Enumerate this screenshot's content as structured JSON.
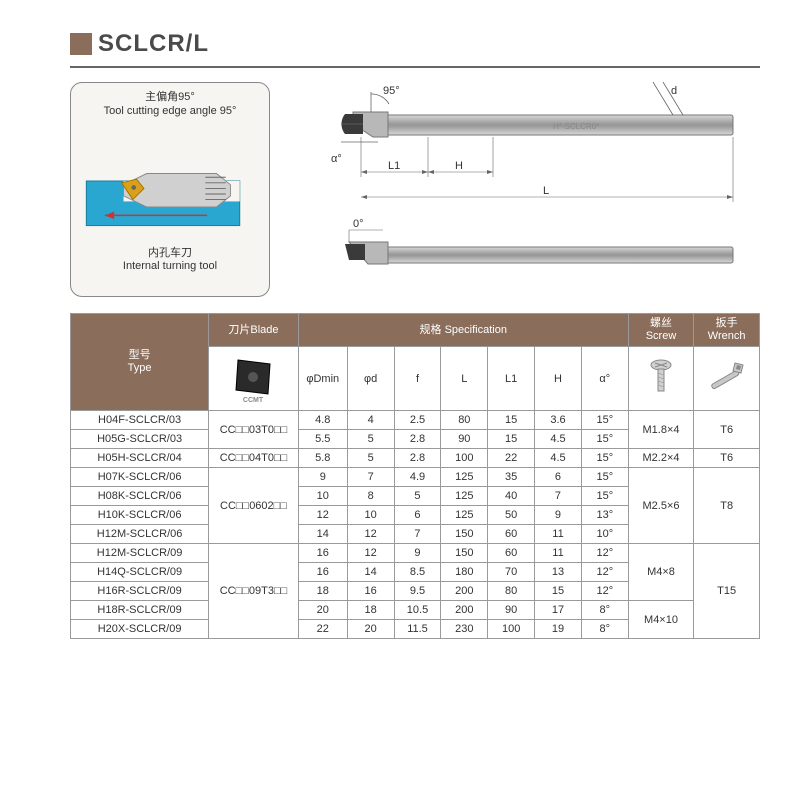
{
  "colors": {
    "header_bg": "#8a6d5a",
    "title_square": "#8a6d5a",
    "workpiece": "#2aa7d0",
    "insert": "#d9a01a",
    "tool_body": "#9a9a9a",
    "grid": "#9a9a9a",
    "text": "#333333"
  },
  "title": "SCLCR/L",
  "left_panel": {
    "angle_cn": "主偏角95°",
    "angle_en": "Tool cutting edge angle 95°",
    "tool_cn": "内孔车刀",
    "tool_en": "Internal turning tool"
  },
  "diagram_labels": {
    "angle95": "95°",
    "alpha": "α°",
    "L1": "L1",
    "H": "H",
    "L": "L",
    "zero": "0°",
    "d": "d"
  },
  "table": {
    "headers": {
      "type_cn": "型号",
      "type_en": "Type",
      "blade_cn": "刀片",
      "blade_en": "Blade",
      "spec_cn": "规格",
      "spec_en": "Specification",
      "screw_cn": "螺丝",
      "screw_en": "Screw",
      "wrench_cn": "扳手",
      "wrench_en": "Wrench"
    },
    "spec_cols": [
      "φDmin",
      "φd",
      "f",
      "L",
      "L1",
      "H",
      "α°"
    ],
    "insert_badge": "CCMT",
    "rows": [
      {
        "type": "H04F-SCLCR/03",
        "blade": "CC□□03T0□□",
        "blade_span": 2,
        "dmin": "4.8",
        "d": "4",
        "f": "2.5",
        "L": "80",
        "L1": "15",
        "H": "3.6",
        "a": "15°",
        "screw": "M1.8×4",
        "screw_span": 2,
        "wrench": "T6",
        "wrench_span": 2
      },
      {
        "type": "H05G-SCLCR/03",
        "dmin": "5.5",
        "d": "5",
        "f": "2.8",
        "L": "90",
        "L1": "15",
        "H": "4.5",
        "a": "15°"
      },
      {
        "type": "H05H-SCLCR/04",
        "blade": "CC□□04T0□□",
        "blade_span": 1,
        "dmin": "5.8",
        "d": "5",
        "f": "2.8",
        "L": "100",
        "L1": "22",
        "H": "4.5",
        "a": "15°",
        "screw": "M2.2×4",
        "screw_span": 1,
        "wrench": "T6",
        "wrench_span": 1
      },
      {
        "type": "H07K-SCLCR/06",
        "blade": "CC□□0602□□",
        "blade_span": 4,
        "dmin": "9",
        "d": "7",
        "f": "4.9",
        "L": "125",
        "L1": "35",
        "H": "6",
        "a": "15°",
        "screw": "M2.5×6",
        "screw_span": 4,
        "wrench": "T8",
        "wrench_span": 4
      },
      {
        "type": "H08K-SCLCR/06",
        "dmin": "10",
        "d": "8",
        "f": "5",
        "L": "125",
        "L1": "40",
        "H": "7",
        "a": "15°"
      },
      {
        "type": "H10K-SCLCR/06",
        "dmin": "12",
        "d": "10",
        "f": "6",
        "L": "125",
        "L1": "50",
        "H": "9",
        "a": "13°"
      },
      {
        "type": "H12M-SCLCR/06",
        "dmin": "14",
        "d": "12",
        "f": "7",
        "L": "150",
        "L1": "60",
        "H": "11",
        "a": "10°"
      },
      {
        "type": "H12M-SCLCR/09",
        "blade": "CC□□09T3□□",
        "blade_span": 5,
        "dmin": "16",
        "d": "12",
        "f": "9",
        "L": "150",
        "L1": "60",
        "H": "11",
        "a": "12°",
        "screw": "M4×8",
        "screw_span": 3,
        "wrench": "T15",
        "wrench_span": 5
      },
      {
        "type": "H14Q-SCLCR/09",
        "dmin": "16",
        "d": "14",
        "f": "8.5",
        "L": "180",
        "L1": "70",
        "H": "13",
        "a": "12°"
      },
      {
        "type": "H16R-SCLCR/09",
        "dmin": "18",
        "d": "16",
        "f": "9.5",
        "L": "200",
        "L1": "80",
        "H": "15",
        "a": "12°"
      },
      {
        "type": "H18R-SCLCR/09",
        "dmin": "20",
        "d": "18",
        "f": "10.5",
        "L": "200",
        "L1": "90",
        "H": "17",
        "a": "8°",
        "screw": "M4×10",
        "screw_span": 2
      },
      {
        "type": "H20X-SCLCR/09",
        "dmin": "22",
        "d": "20",
        "f": "11.5",
        "L": "230",
        "L1": "100",
        "H": "19",
        "a": "8°"
      }
    ]
  }
}
